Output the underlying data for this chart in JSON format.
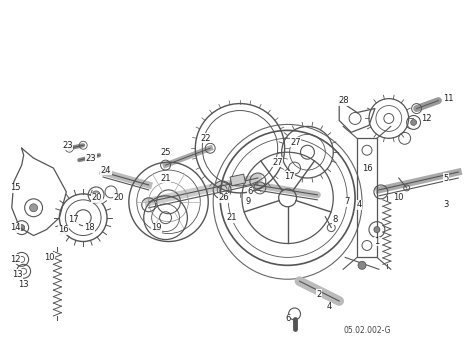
{
  "bg_color": "#ffffff",
  "title": "05.02.002-G",
  "fig_width": 4.74,
  "fig_height": 3.58,
  "dpi": 100,
  "image_data": ""
}
